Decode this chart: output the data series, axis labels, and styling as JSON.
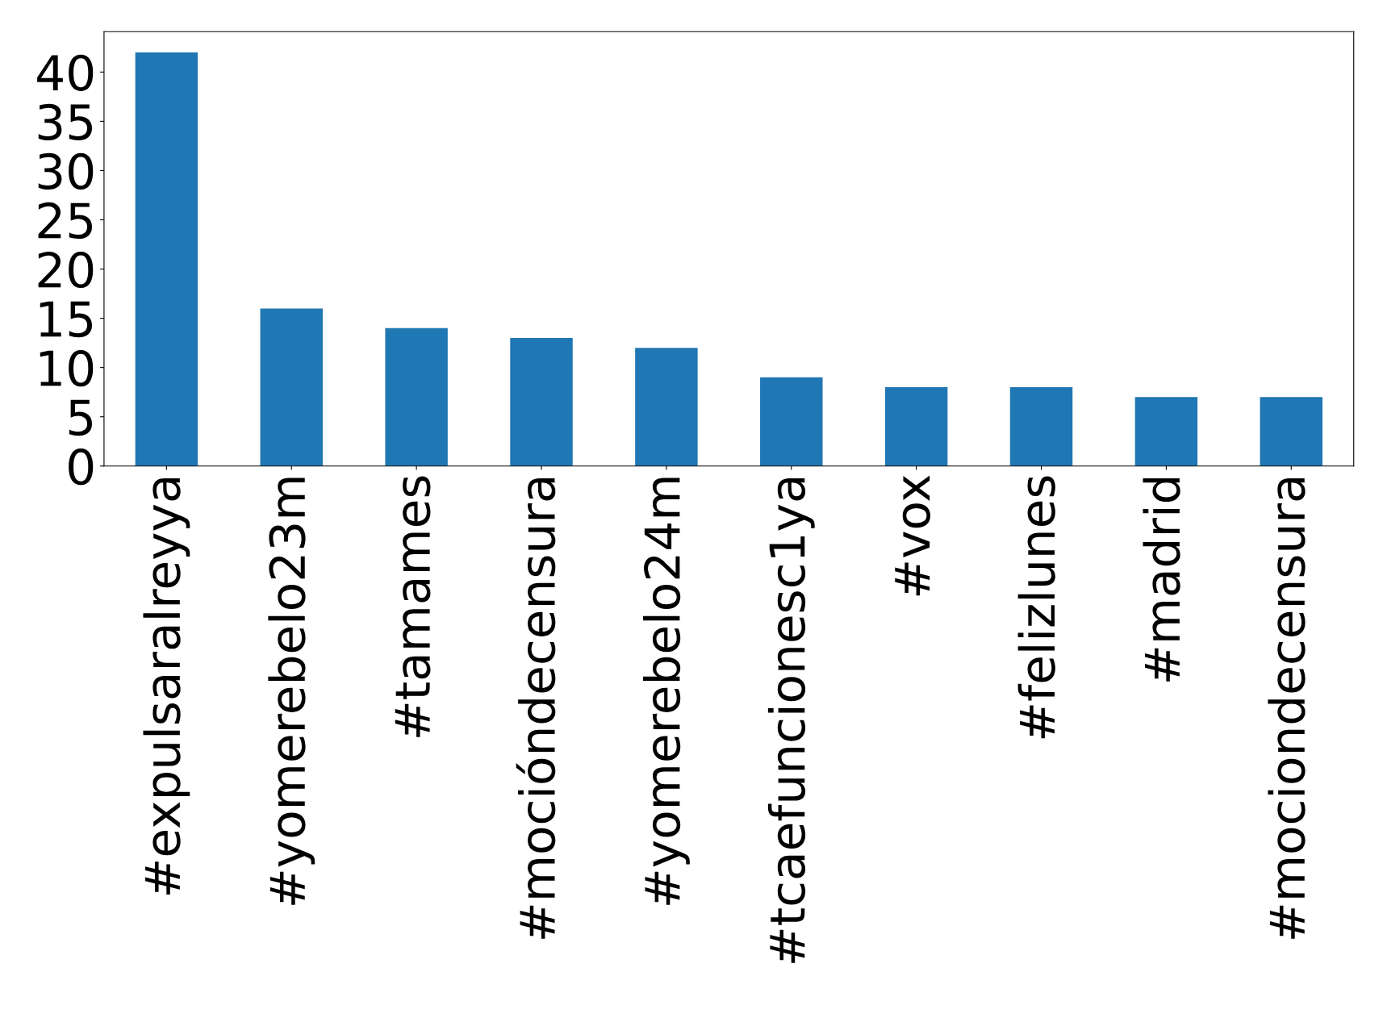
{
  "chart_data": {
    "type": "bar",
    "categories": [
      "#expulsaralreyya",
      "#yomerebelo23m",
      "#tamames",
      "#mocióndecensura",
      "#yomerebelo24m",
      "#tcaefuncionesc1ya",
      "#vox",
      "#felizlunes",
      "#madrid",
      "#mociondecensura"
    ],
    "values": [
      42,
      16,
      14,
      13,
      12,
      9,
      8,
      8,
      7,
      7
    ],
    "color": "#1f77b4",
    "ylim": [
      0,
      44.1
    ],
    "yticks": [
      0,
      5,
      10,
      15,
      20,
      25,
      30,
      35,
      40
    ],
    "grid": false
  }
}
